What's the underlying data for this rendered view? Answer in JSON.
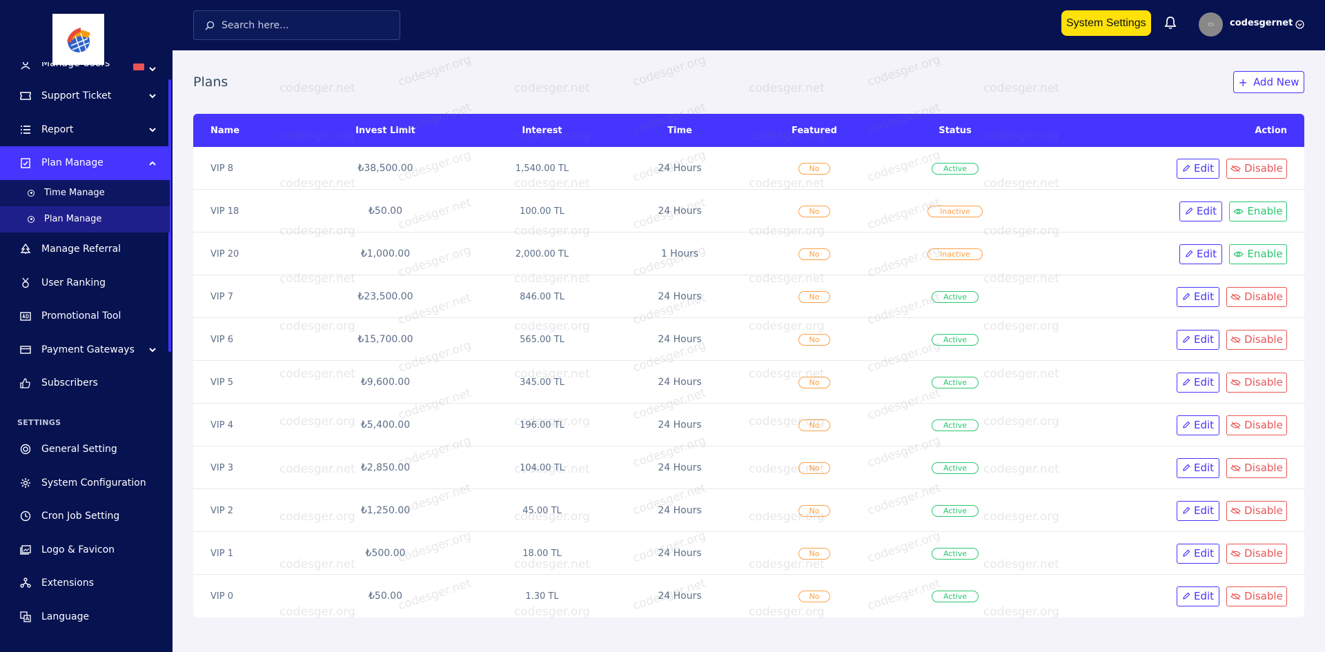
{
  "sidebar": {
    "items_top": [
      {
        "label": "Manage Users",
        "icon": "users-icon",
        "chevron": true
      },
      {
        "label": "Support Ticket",
        "icon": "ticket-icon",
        "chevron": true
      },
      {
        "label": "Report",
        "icon": "list-icon",
        "chevron": true
      },
      {
        "label": "Plan Manage",
        "icon": "clipboard-icon",
        "chevron": true
      }
    ],
    "sub_items": [
      {
        "label": "Time Manage"
      },
      {
        "label": "Plan Manage"
      }
    ],
    "items_mid": [
      {
        "label": "Manage Referral",
        "icon": "tree-icon"
      },
      {
        "label": "User Ranking",
        "icon": "medal-icon"
      },
      {
        "label": "Promotional Tool",
        "icon": "ad-icon"
      },
      {
        "label": "Payment Gateways",
        "icon": "card-icon",
        "chevron": true
      },
      {
        "label": "Subscribers",
        "icon": "thumbs-up-icon"
      }
    ],
    "settings_label": "SETTINGS",
    "items_settings": [
      {
        "label": "General Setting",
        "icon": "life-ring-icon"
      },
      {
        "label": "System Configuration",
        "icon": "gear-icon"
      },
      {
        "label": "Cron Job Setting",
        "icon": "clock-icon"
      },
      {
        "label": "Logo & Favicon",
        "icon": "image-icon"
      },
      {
        "label": "Extensions",
        "icon": "puzzle-icon"
      },
      {
        "label": "Language",
        "icon": "language-icon"
      }
    ]
  },
  "topbar": {
    "search_placeholder": "Search here...",
    "system_settings": "System Settings",
    "username": "codesgernet"
  },
  "page": {
    "title": "Plans",
    "add_new": "Add New"
  },
  "table": {
    "headers": {
      "name": "Name",
      "invest": "Invest Limit",
      "interest": "Interest",
      "time": "Time",
      "featured": "Featured",
      "status": "Status",
      "action": "Action"
    },
    "edit_label": "Edit",
    "rows": [
      {
        "name": "VIP 8",
        "invest": "₺38,500.00",
        "interest": "1,540.00 TL",
        "time": "24 Hours",
        "featured": "No",
        "status": "Active",
        "toggle": "Disable"
      },
      {
        "name": "VIP 18",
        "invest": "₺50.00",
        "interest": "100.00 TL",
        "time": "24 Hours",
        "featured": "No",
        "status": "Inactive",
        "toggle": "Enable"
      },
      {
        "name": "VIP 20",
        "invest": "₺1,000.00",
        "interest": "2,000.00 TL",
        "time": "1 Hours",
        "featured": "No",
        "status": "Inactive",
        "toggle": "Enable"
      },
      {
        "name": "VIP 7",
        "invest": "₺23,500.00",
        "interest": "846.00 TL",
        "time": "24 Hours",
        "featured": "No",
        "status": "Active",
        "toggle": "Disable"
      },
      {
        "name": "VIP 6",
        "invest": "₺15,700.00",
        "interest": "565.00 TL",
        "time": "24 Hours",
        "featured": "No",
        "status": "Active",
        "toggle": "Disable"
      },
      {
        "name": "VIP 5",
        "invest": "₺9,600.00",
        "interest": "345.00 TL",
        "time": "24 Hours",
        "featured": "No",
        "status": "Active",
        "toggle": "Disable"
      },
      {
        "name": "VIP 4",
        "invest": "₺5,400.00",
        "interest": "196.00 TL",
        "time": "24 Hours",
        "featured": "No",
        "status": "Active",
        "toggle": "Disable"
      },
      {
        "name": "VIP 3",
        "invest": "₺2,850.00",
        "interest": "104.00 TL",
        "time": "24 Hours",
        "featured": "No",
        "status": "Active",
        "toggle": "Disable"
      },
      {
        "name": "VIP 2",
        "invest": "₺1,250.00",
        "interest": "45.00 TL",
        "time": "24 Hours",
        "featured": "No",
        "status": "Active",
        "toggle": "Disable"
      },
      {
        "name": "VIP 1",
        "invest": "₺500.00",
        "interest": "18.00 TL",
        "time": "24 Hours",
        "featured": "No",
        "status": "Active",
        "toggle": "Disable"
      },
      {
        "name": "VIP 0",
        "invest": "₺50.00",
        "interest": "1.30 TL",
        "time": "24 Hours",
        "featured": "No",
        "status": "Active",
        "toggle": "Disable"
      }
    ]
  },
  "watermarks": [
    "codesger.net",
    "codesger.org"
  ],
  "colors": {
    "sidebar_bg": "#071251",
    "accent": "#4634ff",
    "system_btn": "#ffe10a",
    "success": "#28c76f",
    "danger": "#ea5455",
    "warning": "#ff9f43"
  }
}
